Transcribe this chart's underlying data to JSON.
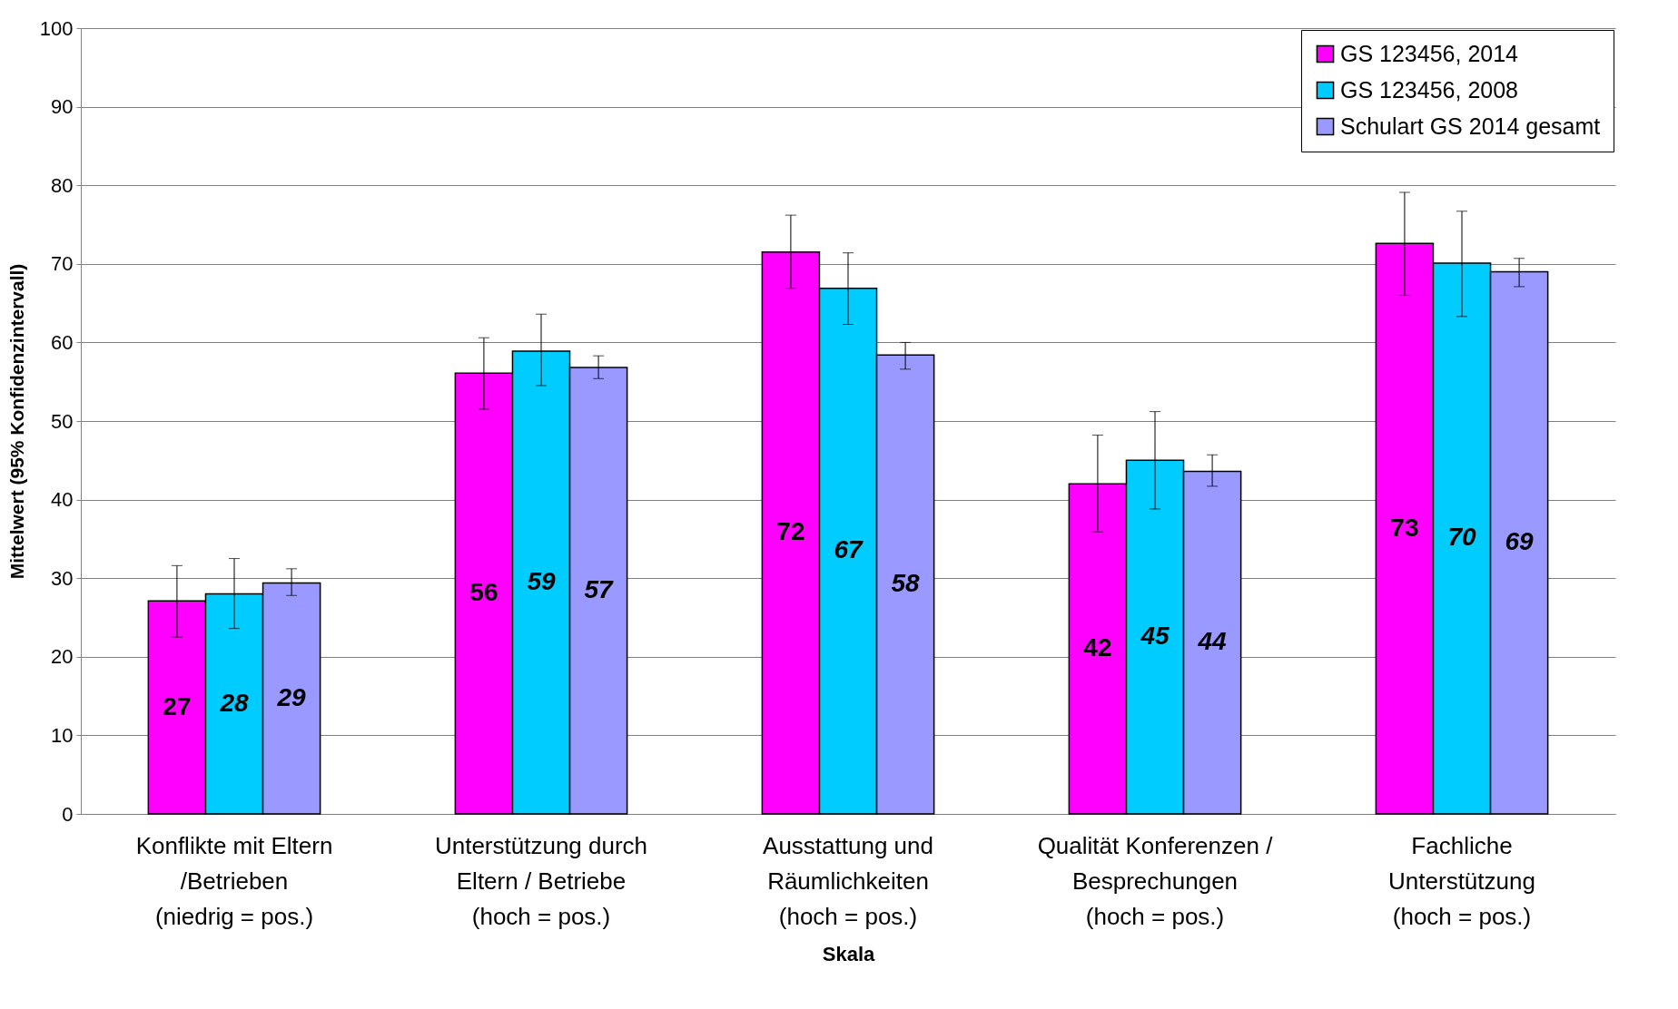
{
  "chart_data": {
    "type": "bar",
    "xlabel": "Skala",
    "ylabel": "Mittelwert (95% Konfidenzintervall)",
    "categories": [
      "Konflikte mit Eltern /Betrieben (niedrig = pos.)",
      "Unterstützung durch Eltern / Betriebe (hoch = pos.)",
      "Ausstattung und Räumlichkeiten (hoch = pos.)",
      "Qualität Konferenzen / Besprechungen (hoch = pos.)",
      "Fachliche Unterstützung (hoch = pos.)"
    ],
    "series": [
      {
        "name": "GS 123456, 2014",
        "color": "#ff00ff",
        "values": [
          27.1,
          56.1,
          71.5,
          42.0,
          72.6
        ],
        "errors": [
          [
            22.5,
            31.6
          ],
          [
            51.5,
            60.6
          ],
          [
            66.9,
            76.2
          ],
          [
            35.9,
            48.2
          ],
          [
            66.0,
            79.1
          ]
        ],
        "value_labels": [
          "27",
          "56",
          "72",
          "42",
          "73"
        ]
      },
      {
        "name": "GS 123456, 2008",
        "color": "#00ccff",
        "values": [
          28.0,
          58.9,
          66.9,
          45.0,
          70.1
        ],
        "errors": [
          [
            23.6,
            32.5
          ],
          [
            54.5,
            63.6
          ],
          [
            62.3,
            71.4
          ],
          [
            38.8,
            51.2
          ],
          [
            63.3,
            76.7
          ]
        ],
        "value_labels": [
          "28",
          "59",
          "67",
          "45",
          "70"
        ]
      },
      {
        "name": "Schulart GS 2014 gesamt",
        "color": "#9999ff",
        "values": [
          29.4,
          56.8,
          58.4,
          43.6,
          69.0
        ],
        "errors": [
          [
            27.8,
            31.2
          ],
          [
            55.4,
            58.3
          ],
          [
            56.6,
            60.0
          ],
          [
            41.7,
            45.7
          ],
          [
            67.1,
            70.7
          ]
        ],
        "value_labels": [
          "29",
          "57",
          "58",
          "44",
          "69"
        ]
      }
    ],
    "ylim": [
      0,
      100
    ],
    "yticks": [
      0,
      10,
      20,
      30,
      40,
      50,
      60,
      70,
      80,
      90,
      100
    ],
    "grid": "y",
    "legend": "top right"
  }
}
